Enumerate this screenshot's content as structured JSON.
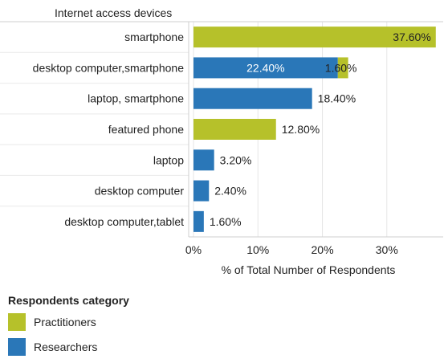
{
  "chart_data": {
    "type": "bar",
    "orientation": "horizontal",
    "stacked": true,
    "title": "Internet access devices",
    "xlabel": "% of Total Number of Respondents",
    "xlim": [
      0,
      38
    ],
    "xticks": [
      0,
      10,
      20,
      30
    ],
    "xtick_labels": [
      "0%",
      "10%",
      "20%",
      "30%"
    ],
    "grid": true,
    "legend_position": "bottom-left",
    "categories": [
      "smartphone",
      "desktop computer,smartphone",
      "laptop, smartphone",
      "featured phone",
      "laptop",
      "desktop computer",
      "desktop computer,tablet"
    ],
    "series": [
      {
        "name": "Researchers",
        "color": "#2a77b8",
        "values": [
          null,
          22.4,
          18.4,
          null,
          3.2,
          2.4,
          1.6
        ],
        "labels": [
          "",
          "22.40%",
          "18.40%",
          "",
          "3.20%",
          "2.40%",
          "1.60%"
        ]
      },
      {
        "name": "Practitioners",
        "color": "#b6c12a",
        "values": [
          37.6,
          1.6,
          null,
          12.8,
          null,
          null,
          null
        ],
        "labels": [
          "37.60%",
          "1.60%",
          "",
          "12.80%",
          "",
          "",
          ""
        ]
      }
    ]
  },
  "legend": {
    "title": "Respondents category",
    "items": [
      {
        "label": "Practitioners",
        "color": "#b6c12a"
      },
      {
        "label": "Researchers",
        "color": "#2a77b8"
      }
    ]
  }
}
